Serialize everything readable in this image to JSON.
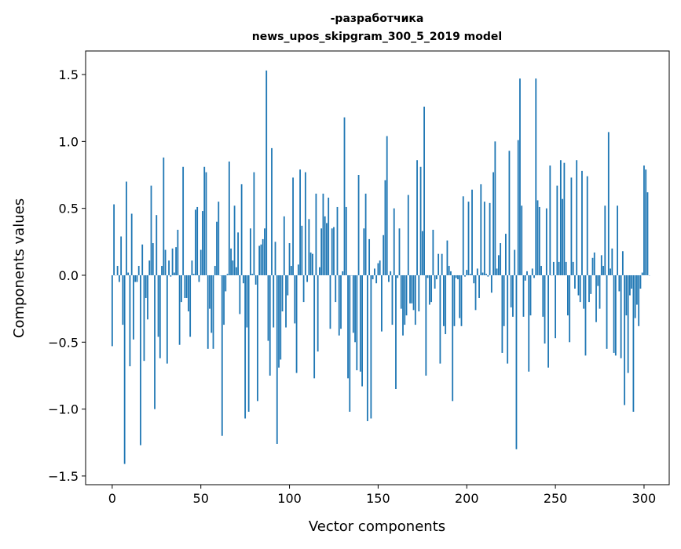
{
  "chart_data": {
    "type": "bar",
    "title_lines": [
      "-разработчика",
      "news_upos_skipgram_300_5_2019 model"
    ],
    "xlabel": "Vector components",
    "ylabel": "Components values",
    "xlim": [
      -15,
      314.2
    ],
    "ylim": [
      -1.565,
      1.676
    ],
    "xticks": [
      0,
      50,
      100,
      150,
      200,
      250,
      300
    ],
    "xtick_labels": [
      "0",
      "50",
      "100",
      "150",
      "200",
      "250",
      "300"
    ],
    "yticks": [
      -1.5,
      -1.0,
      -0.5,
      0.0,
      0.5,
      1.0,
      1.5
    ],
    "ytick_labels": [
      "−1.5",
      "−1.0",
      "−0.5",
      "0.0",
      "0.5",
      "1.0",
      "1.5"
    ],
    "grid": false,
    "bar_color": "#1f77b4",
    "values": [
      -0.53,
      0.53,
      0.0,
      0.07,
      -0.05,
      0.29,
      -0.37,
      -1.41,
      0.7,
      0.02,
      -0.68,
      0.46,
      -0.48,
      -0.05,
      -0.05,
      0.07,
      -1.27,
      0.23,
      -0.64,
      -0.17,
      -0.33,
      0.11,
      0.67,
      0.24,
      -1.0,
      0.45,
      -0.46,
      -0.62,
      0.07,
      0.88,
      0.19,
      -0.66,
      0.11,
      -0.01,
      0.2,
      0.02,
      0.21,
      0.34,
      -0.52,
      -0.2,
      0.81,
      -0.17,
      -0.17,
      -0.27,
      -0.46,
      0.11,
      0.01,
      0.49,
      0.51,
      -0.05,
      0.19,
      0.48,
      0.81,
      0.77,
      -0.55,
      -0.25,
      -0.43,
      -0.55,
      0.07,
      0.4,
      0.55,
      0.0,
      -1.2,
      -0.37,
      -0.12,
      0.01,
      0.85,
      0.2,
      0.11,
      0.52,
      0.06,
      0.32,
      -0.29,
      0.68,
      -0.06,
      -1.07,
      -0.39,
      -1.02,
      0.35,
      0.01,
      0.77,
      -0.07,
      -0.94,
      0.22,
      0.23,
      0.27,
      0.35,
      1.53,
      -0.49,
      -0.75,
      0.95,
      -0.39,
      0.25,
      -1.26,
      -0.69,
      -0.63,
      -0.27,
      0.44,
      -0.39,
      -0.15,
      0.24,
      0.07,
      0.73,
      -0.36,
      -0.73,
      0.08,
      0.79,
      0.37,
      -0.2,
      0.77,
      -0.05,
      0.42,
      0.17,
      0.16,
      -0.77,
      0.61,
      -0.57,
      0.06,
      0.35,
      0.61,
      0.44,
      0.39,
      0.58,
      -0.4,
      0.35,
      0.36,
      -0.2,
      0.51,
      -0.45,
      -0.4,
      0.03,
      1.18,
      0.51,
      -0.77,
      -1.02,
      0.0,
      -0.43,
      -0.5,
      -0.71,
      0.75,
      -0.72,
      -0.83,
      0.35,
      0.61,
      -1.09,
      0.27,
      -1.07,
      -0.03,
      0.05,
      -0.06,
      0.09,
      0.11,
      -0.42,
      0.3,
      0.71,
      1.04,
      -0.05,
      0.03,
      -0.37,
      0.5,
      -0.85,
      -0.02,
      0.35,
      -0.25,
      -0.45,
      -0.37,
      -0.3,
      0.6,
      -0.21,
      -0.21,
      -0.26,
      -0.37,
      0.86,
      -0.27,
      0.81,
      0.33,
      1.26,
      -0.75,
      -0.02,
      -0.22,
      -0.2,
      0.34,
      -0.1,
      -0.03,
      0.16,
      -0.66,
      0.16,
      -0.38,
      -0.44,
      0.26,
      0.07,
      0.03,
      -0.94,
      -0.38,
      -0.02,
      -0.03,
      -0.32,
      -0.38,
      0.59,
      -0.01,
      0.04,
      0.55,
      0.01,
      0.64,
      -0.06,
      -0.26,
      0.05,
      -0.17,
      0.68,
      0.02,
      0.55,
      0.01,
      -0.01,
      0.54,
      -0.13,
      0.77,
      1.0,
      0.05,
      0.15,
      0.24,
      -0.58,
      -0.38,
      0.31,
      -0.66,
      0.93,
      -0.24,
      -0.31,
      0.19,
      -1.3,
      1.01,
      1.47,
      0.52,
      -0.31,
      -0.04,
      0.03,
      -0.72,
      -0.3,
      0.05,
      -0.02,
      1.47,
      0.56,
      0.51,
      0.07,
      -0.31,
      -0.51,
      0.5,
      -0.69,
      0.82,
      0.0,
      0.1,
      -0.47,
      0.67,
      0.1,
      0.86,
      0.57,
      0.84,
      0.1,
      -0.3,
      -0.5,
      0.73,
      0.1,
      -0.1,
      0.86,
      -0.15,
      -0.2,
      0.78,
      -0.25,
      -0.6,
      0.74,
      -0.2,
      -0.14,
      0.13,
      0.17,
      -0.35,
      -0.08,
      -0.25,
      0.15,
      0.07,
      0.52,
      -0.55,
      1.07,
      0.05,
      0.2,
      -0.58,
      -0.6,
      0.52,
      -0.12,
      -0.62,
      0.18,
      -0.97,
      -0.3,
      -0.73,
      -0.15,
      -0.1,
      -1.02,
      -0.32,
      -0.22,
      -0.38,
      -0.1,
      0.02,
      0.82,
      0.79,
      0.62,
      0.0
    ]
  }
}
